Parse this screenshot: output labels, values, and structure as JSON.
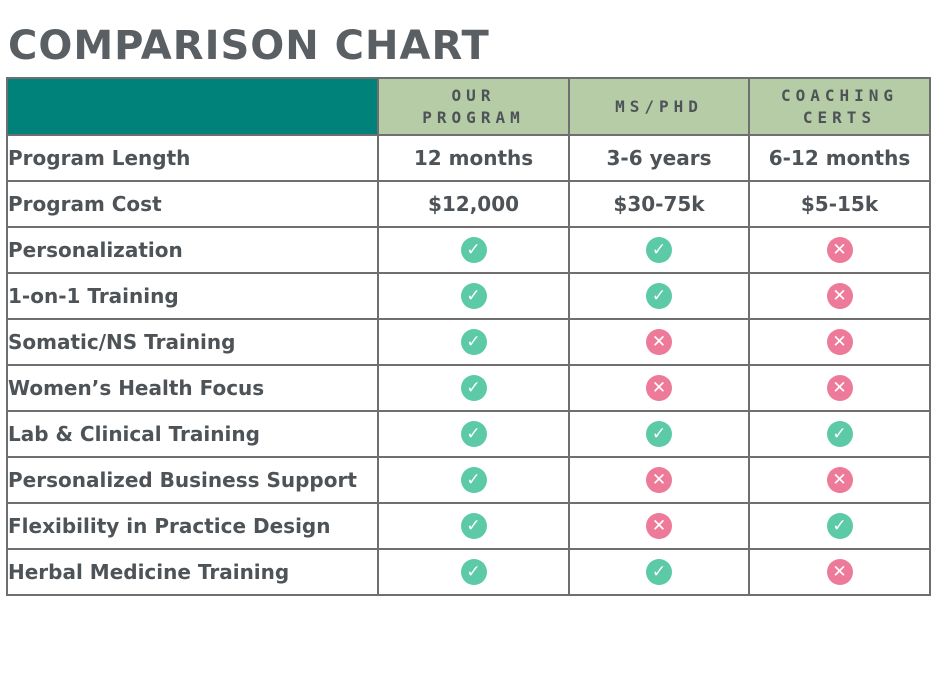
{
  "title": "COMPARISON CHART",
  "columns": [
    "OUR\nPROGRAM",
    "MS/PHD",
    "COACHING\nCERTS"
  ],
  "text_rows": [
    {
      "label": "Program Length",
      "values": [
        "12 months",
        "3-6 years",
        "6-12 months"
      ]
    },
    {
      "label": "Program Cost",
      "values": [
        "$12,000",
        "$30-75k",
        "$5-15k"
      ]
    }
  ],
  "feature_rows": [
    {
      "label": "Personalization",
      "marks": [
        true,
        true,
        false
      ]
    },
    {
      "label": "1-on-1 Training",
      "marks": [
        true,
        true,
        false
      ]
    },
    {
      "label": "Somatic/NS Training",
      "marks": [
        true,
        false,
        false
      ]
    },
    {
      "label": "Women’s Health Focus",
      "marks": [
        true,
        false,
        false
      ]
    },
    {
      "label": "Lab & Clinical Training",
      "marks": [
        true,
        true,
        true
      ]
    },
    {
      "label": "Personalized Business Support",
      "marks": [
        true,
        false,
        false
      ]
    },
    {
      "label": "Flexibility in Practice Design",
      "marks": [
        true,
        false,
        true
      ]
    },
    {
      "label": "Herbal Medicine Training",
      "marks": [
        true,
        true,
        false
      ]
    }
  ],
  "icons": {
    "yes": "check-circle-icon",
    "no": "x-circle-icon"
  },
  "colors": {
    "header_teal": "#00827b",
    "header_green": "#b5cca6",
    "check": "#5ccaa6",
    "cross": "#ee7a9a",
    "text": "#4d5357"
  }
}
